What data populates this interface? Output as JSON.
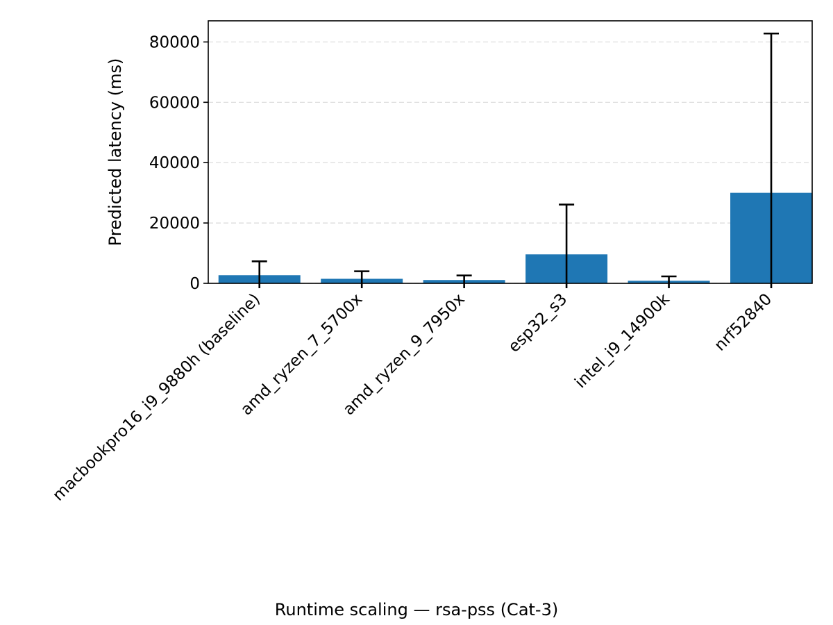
{
  "chart_data": {
    "type": "bar",
    "categories": [
      "macbookpro16_i9_9880h (baseline)",
      "amd_ryzen_7_5700x",
      "amd_ryzen_9_7950x",
      "esp32_s3",
      "intel_i9_14900k",
      "nrf52840"
    ],
    "values": [
      2700,
      1500,
      1100,
      9600,
      850,
      30000
    ],
    "error_upper": [
      7300,
      4000,
      2600,
      26100,
      2300,
      82800
    ],
    "error_lower": [
      0,
      0,
      0,
      0,
      0,
      0
    ],
    "ylabel": "Predicted latency (ms)",
    "xlabel": "Runtime scaling — rsa-pss (Cat-3)",
    "ylim": [
      0,
      87000
    ],
    "yticks": [
      0,
      20000,
      40000,
      60000,
      80000
    ],
    "ytick_labels": [
      "0",
      "20000",
      "40000",
      "60000",
      "80000"
    ],
    "grid": "y-dashed",
    "bar_color": "#1f77b4"
  }
}
